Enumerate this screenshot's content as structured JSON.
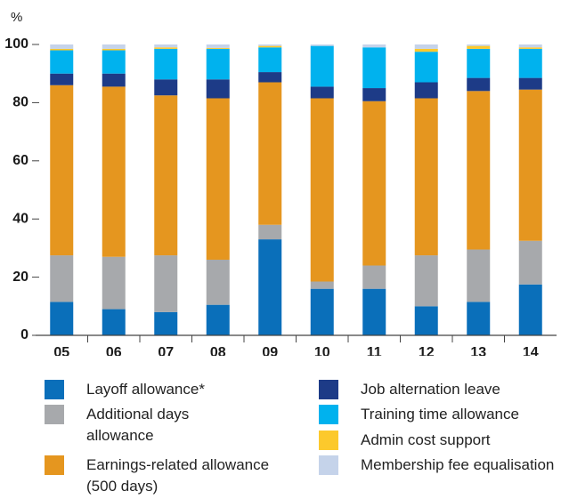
{
  "chart_data": {
    "type": "stacked_bar",
    "y_label": "%",
    "categories": [
      "05",
      "06",
      "07",
      "08",
      "09",
      "10",
      "11",
      "12",
      "13",
      "14"
    ],
    "ylim": [
      0,
      100
    ],
    "yticks": [
      0,
      20,
      40,
      60,
      80,
      100
    ],
    "series": [
      {
        "name": "Layoff allowance*",
        "color": "#0a6fba",
        "values": [
          11.5,
          9,
          8,
          10.5,
          33,
          16,
          16,
          10,
          11.5,
          17.5
        ]
      },
      {
        "name": "Additional days allowance",
        "color": "#a7a9ac",
        "values": [
          16,
          18,
          19.5,
          15.5,
          5,
          2.5,
          8,
          17.5,
          18,
          15
        ]
      },
      {
        "name": "Earnings-related allowance (500 days)",
        "color": "#e5961f",
        "values": [
          58.5,
          58.5,
          55,
          55.5,
          49,
          63,
          56.5,
          54,
          54.5,
          52
        ]
      },
      {
        "name": "Job alternation leave",
        "color": "#1d3b87",
        "values": [
          4,
          4.5,
          5.5,
          6.5,
          3.5,
          4,
          4.5,
          5.5,
          4.5,
          4
        ]
      },
      {
        "name": "Training time allowance",
        "color": "#00b2ee",
        "values": [
          8,
          8,
          10.5,
          10.5,
          8.5,
          14,
          14,
          10.5,
          10,
          10
        ]
      },
      {
        "name": "Admin cost support",
        "color": "#fcc92c",
        "values": [
          0.5,
          0.5,
          0.5,
          0.3,
          0.5,
          0,
          0,
          1,
          1,
          0.5
        ]
      },
      {
        "name": "Membership fee equalisation",
        "color": "#c5d3ea",
        "values": [
          1.5,
          1.5,
          1,
          1.2,
          0.5,
          0.5,
          1,
          1.5,
          0.5,
          1
        ]
      }
    ]
  }
}
